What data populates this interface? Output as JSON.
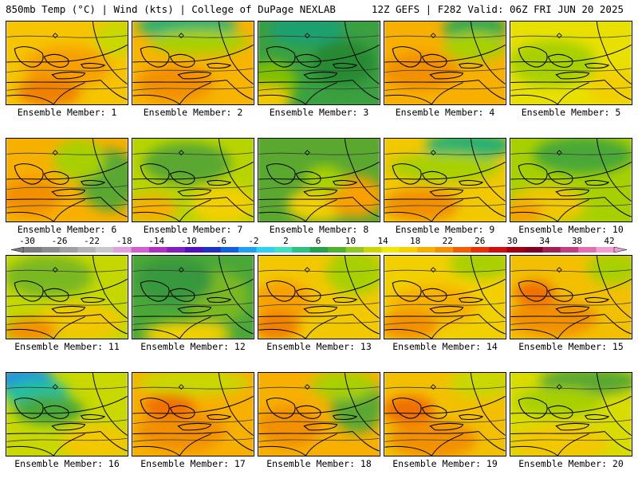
{
  "header": {
    "left": "850mb Temp (°C) | Wind (kts) | College of DuPage NEXLAB",
    "right": "12Z GEFS | F282 Valid: 06Z FRI JUN 20 2025"
  },
  "panels": [
    {
      "label": "Ensemble Member: 1",
      "bg": "#f6c400",
      "blobs": [
        [
          "#f7a000",
          0.5,
          0.55,
          0.6,
          0.35
        ],
        [
          "#f08000",
          0.35,
          0.85,
          0.4,
          0.2
        ],
        [
          "#c8d800",
          0.9,
          0.2,
          0.2,
          0.3
        ]
      ]
    },
    {
      "label": "Ensemble Member: 2",
      "bg": "#f7b400",
      "blobs": [
        [
          "#2ab070",
          0.45,
          0.05,
          0.7,
          0.18
        ],
        [
          "#a8d000",
          0.55,
          0.25,
          0.7,
          0.15
        ],
        [
          "#f29000",
          0.35,
          0.75,
          0.5,
          0.3
        ]
      ]
    },
    {
      "label": "Ensemble Member: 3",
      "bg": "#3aa040",
      "blobs": [
        [
          "#1fa070",
          0.4,
          0.1,
          0.5,
          0.25
        ],
        [
          "#80c000",
          0.1,
          0.75,
          0.3,
          0.4
        ],
        [
          "#f0c800",
          0.05,
          0.95,
          0.3,
          0.2
        ],
        [
          "#258a30",
          0.7,
          0.5,
          0.4,
          0.4
        ]
      ]
    },
    {
      "label": "Ensemble Member: 4",
      "bg": "#f7b000",
      "blobs": [
        [
          "#30a850",
          0.75,
          0.08,
          0.4,
          0.2
        ],
        [
          "#a8d000",
          0.75,
          0.3,
          0.4,
          0.2
        ],
        [
          "#f29000",
          0.3,
          0.6,
          0.5,
          0.3
        ]
      ]
    },
    {
      "label": "Ensemble Member: 5",
      "bg": "#e8e000",
      "blobs": [
        [
          "#a8d000",
          0.35,
          0.5,
          0.6,
          0.4
        ],
        [
          "#f2d000",
          0.85,
          0.8,
          0.3,
          0.3
        ]
      ]
    },
    {
      "label": "Ensemble Member: 6",
      "bg": "#f7b000",
      "blobs": [
        [
          "#5aa830",
          0.85,
          0.5,
          0.35,
          0.6
        ],
        [
          "#a8d000",
          0.6,
          0.25,
          0.3,
          0.35
        ],
        [
          "#f29000",
          0.2,
          0.7,
          0.35,
          0.3
        ]
      ]
    },
    {
      "label": "Ensemble Member: 7",
      "bg": "#b8d400",
      "blobs": [
        [
          "#5aa830",
          0.45,
          0.3,
          0.6,
          0.35
        ],
        [
          "#f2d000",
          0.75,
          0.8,
          0.4,
          0.3
        ],
        [
          "#f7b000",
          0.15,
          0.85,
          0.3,
          0.2
        ]
      ]
    },
    {
      "label": "Ensemble Member: 8",
      "bg": "#5aa830",
      "blobs": [
        [
          "#f2d000",
          0.5,
          0.8,
          0.4,
          0.25
        ],
        [
          "#f7a000",
          0.8,
          0.7,
          0.35,
          0.35
        ],
        [
          "#a8d000",
          0.55,
          0.5,
          0.2,
          0.2
        ]
      ]
    },
    {
      "label": "Ensemble Member: 9",
      "bg": "#f2c800",
      "blobs": [
        [
          "#2ab070",
          0.7,
          0.08,
          0.6,
          0.18
        ],
        [
          "#a8d000",
          0.5,
          0.35,
          0.8,
          0.2
        ],
        [
          "#f29000",
          0.3,
          0.8,
          0.5,
          0.25
        ]
      ]
    },
    {
      "label": "Ensemble Member: 10",
      "bg": "#a8d000",
      "blobs": [
        [
          "#4aa838",
          0.6,
          0.2,
          0.7,
          0.3
        ],
        [
          "#f2c800",
          0.3,
          0.8,
          0.5,
          0.3
        ],
        [
          "#f7a000",
          0.1,
          0.9,
          0.2,
          0.15
        ]
      ]
    },
    {
      "label": "Ensemble Member: 11",
      "bg": "#c4d800",
      "blobs": [
        [
          "#7ab820",
          0.35,
          0.25,
          0.6,
          0.35
        ],
        [
          "#f2c800",
          0.6,
          0.8,
          0.6,
          0.3
        ],
        [
          "#f29000",
          0.2,
          0.9,
          0.3,
          0.15
        ]
      ]
    },
    {
      "label": "Ensemble Member: 12",
      "bg": "#4aa838",
      "blobs": [
        [
          "#7ab820",
          0.7,
          0.5,
          0.4,
          0.5
        ],
        [
          "#f2d000",
          0.45,
          0.95,
          0.6,
          0.15
        ],
        [
          "#38983c",
          0.35,
          0.3,
          0.5,
          0.4
        ]
      ]
    },
    {
      "label": "Ensemble Member: 13",
      "bg": "#f2c800",
      "blobs": [
        [
          "#a8d000",
          0.8,
          0.2,
          0.35,
          0.4
        ],
        [
          "#f7a000",
          0.2,
          0.55,
          0.35,
          0.35
        ],
        [
          "#f08000",
          0.15,
          0.85,
          0.25,
          0.2
        ]
      ]
    },
    {
      "label": "Ensemble Member: 14",
      "bg": "#f2d000",
      "blobs": [
        [
          "#a8d000",
          0.8,
          0.1,
          0.4,
          0.2
        ],
        [
          "#f7b000",
          0.4,
          0.6,
          0.6,
          0.35
        ],
        [
          "#f29000",
          0.2,
          0.85,
          0.35,
          0.2
        ]
      ]
    },
    {
      "label": "Ensemble Member: 15",
      "bg": "#f2c000",
      "blobs": [
        [
          "#a8d000",
          0.85,
          0.15,
          0.3,
          0.25
        ],
        [
          "#f29000",
          0.35,
          0.75,
          0.6,
          0.3
        ],
        [
          "#f07000",
          0.2,
          0.45,
          0.2,
          0.15
        ]
      ]
    },
    {
      "label": "Ensemble Member: 16",
      "bg": "#c8d800",
      "blobs": [
        [
          "#2090e0",
          0.15,
          0.08,
          0.35,
          0.18
        ],
        [
          "#20c0a0",
          0.25,
          0.25,
          0.4,
          0.2
        ],
        [
          "#4aa838",
          0.35,
          0.45,
          0.45,
          0.2
        ],
        [
          "#f2c800",
          0.75,
          0.85,
          0.45,
          0.3
        ]
      ]
    },
    {
      "label": "Ensemble Member: 17",
      "bg": "#f7b000",
      "blobs": [
        [
          "#c8d800",
          0.5,
          0.12,
          0.8,
          0.15
        ],
        [
          "#f29000",
          0.4,
          0.7,
          0.6,
          0.35
        ],
        [
          "#f07000",
          0.3,
          0.4,
          0.3,
          0.15
        ]
      ]
    },
    {
      "label": "Ensemble Member: 18",
      "bg": "#f7b000",
      "blobs": [
        [
          "#5aa830",
          0.82,
          0.4,
          0.3,
          0.5
        ],
        [
          "#a8d000",
          0.7,
          0.15,
          0.4,
          0.2
        ],
        [
          "#f29000",
          0.25,
          0.65,
          0.4,
          0.35
        ]
      ]
    },
    {
      "label": "Ensemble Member: 19",
      "bg": "#f2c000",
      "blobs": [
        [
          "#c8d800",
          0.8,
          0.12,
          0.4,
          0.2
        ],
        [
          "#f07000",
          0.2,
          0.45,
          0.3,
          0.2
        ],
        [
          "#f29000",
          0.4,
          0.8,
          0.6,
          0.3
        ]
      ]
    },
    {
      "label": "Ensemble Member: 20",
      "bg": "#d8dc00",
      "blobs": [
        [
          "#5aa830",
          0.65,
          0.1,
          0.7,
          0.18
        ],
        [
          "#a8d000",
          0.4,
          0.35,
          0.6,
          0.2
        ],
        [
          "#f2c800",
          0.4,
          0.85,
          0.7,
          0.3
        ]
      ]
    }
  ],
  "colorbar": {
    "labels": [
      "-30",
      "-26",
      "-22",
      "-18",
      "-14",
      "-10",
      "-6",
      "-2",
      "2",
      "6",
      "10",
      "14",
      "18",
      "22",
      "26",
      "30",
      "34",
      "38",
      "42"
    ],
    "colors": [
      "#7c7c7c",
      "#8c8c8c",
      "#a0a0a0",
      "#b4b4b4",
      "#c8c8c8",
      "#e0a0e0",
      "#d060d0",
      "#b030c0",
      "#8020c0",
      "#5010c0",
      "#2030c0",
      "#1060e0",
      "#20a0f0",
      "#30d0f0",
      "#40e0c0",
      "#30c080",
      "#28a050",
      "#50b030",
      "#90c820",
      "#c8d800",
      "#f0e800",
      "#f8d000",
      "#f8b000",
      "#f89000",
      "#f06000",
      "#e83000",
      "#d01010",
      "#a00010",
      "#800020",
      "#a02050",
      "#c04080",
      "#e070b0",
      "#f0a0d0"
    ]
  }
}
